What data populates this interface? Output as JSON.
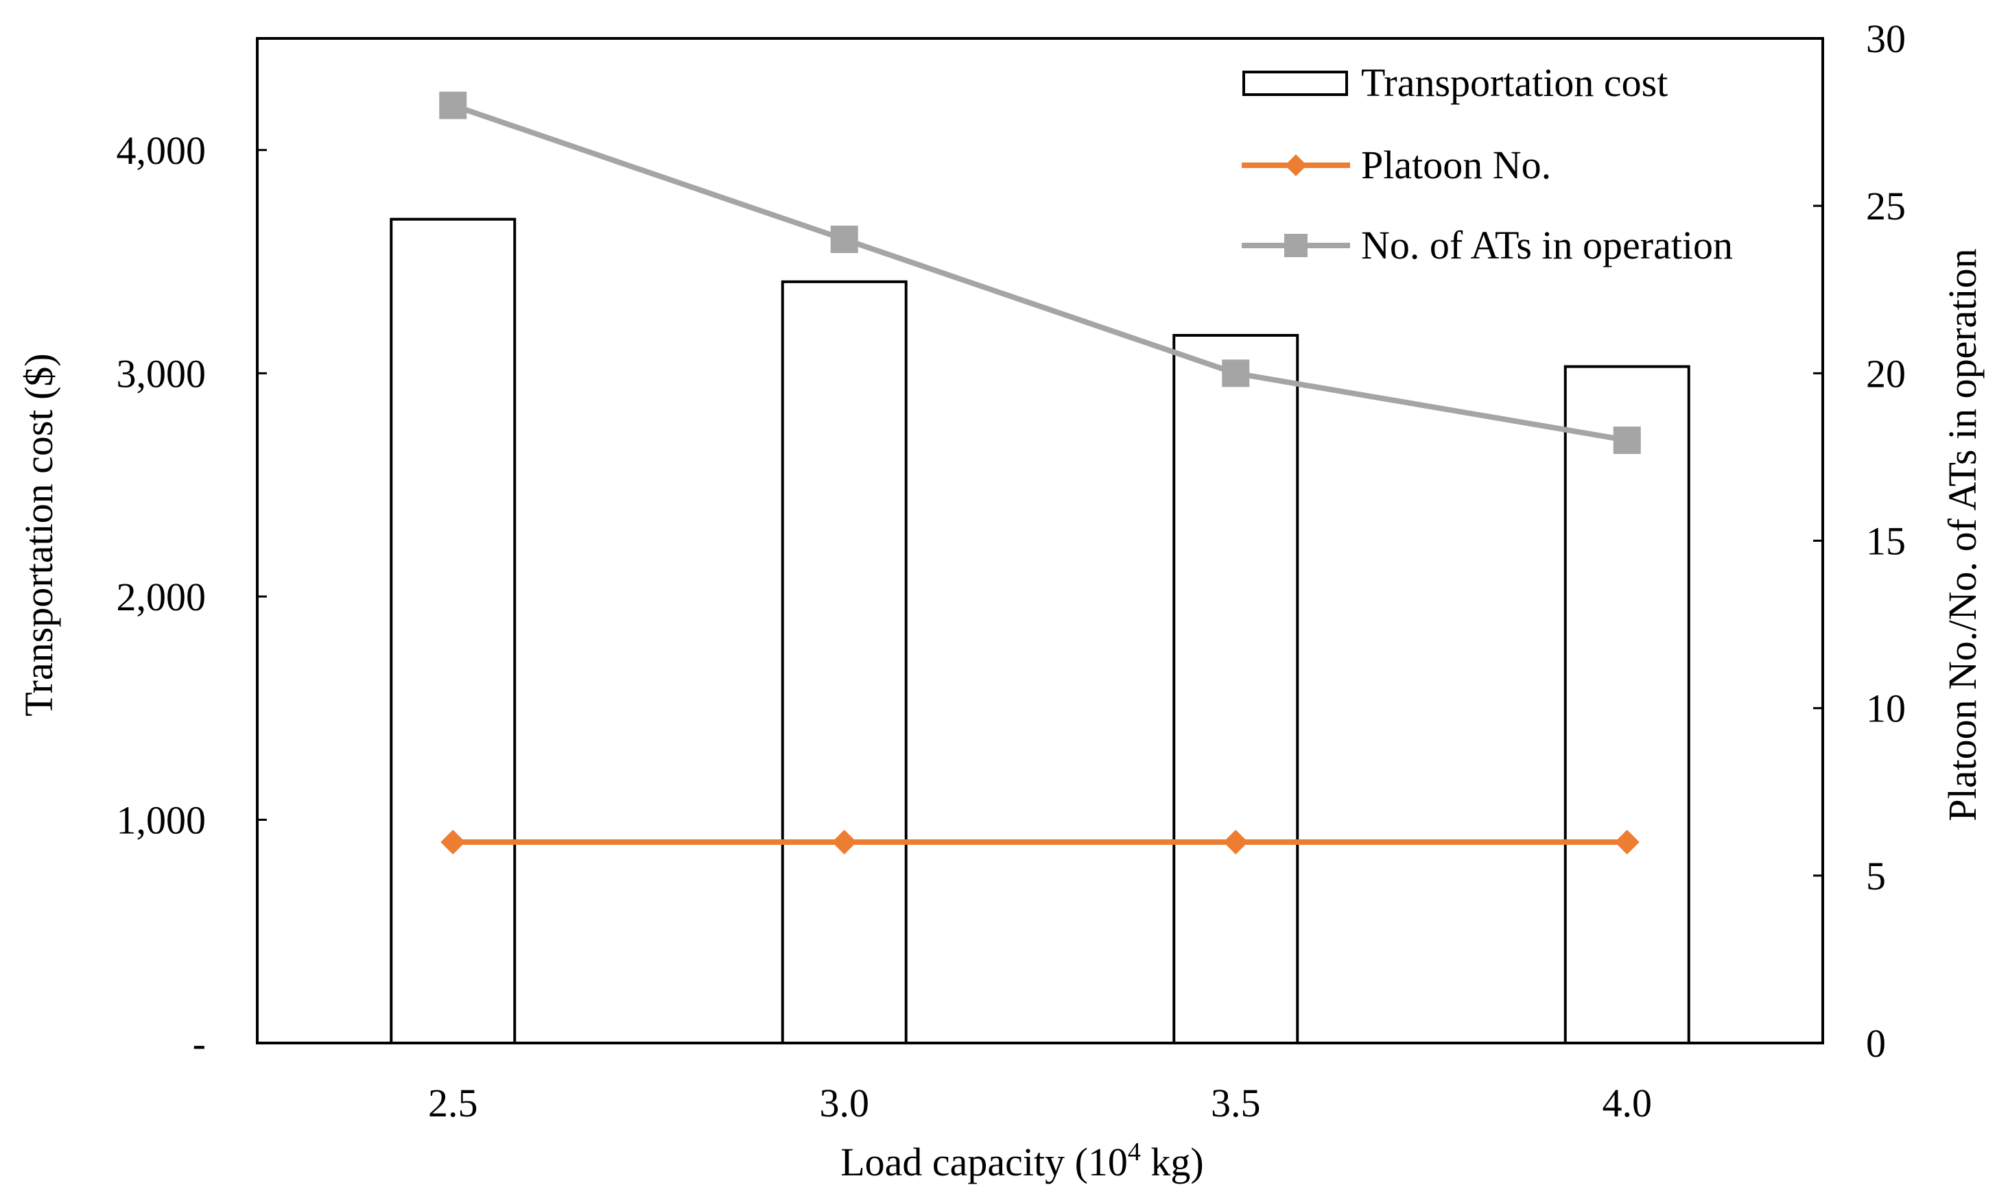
{
  "colors": {
    "bar_fill": "#ffffff",
    "bar_stroke": "#000000",
    "platoon_line": "#ED7D31",
    "ats_line": "#A5A5A5",
    "axis": "#000000"
  },
  "chart_data": {
    "type": "bar+line",
    "categories": [
      "2.5",
      "3.0",
      "3.5",
      "4.0"
    ],
    "xlabel_prefix": "Load capacity (10",
    "xlabel_sup": "4",
    "xlabel_suffix": " kg)",
    "ylabel_left": "Transportation cost ($)",
    "ylabel_right": "Platoon No./No. of ATs in operation",
    "ylim_left": [
      0,
      4500
    ],
    "ylim_right": [
      0,
      30
    ],
    "left_ticks": [
      {
        "value": 0,
        "label": "-"
      },
      {
        "value": 1000,
        "label": "1,000"
      },
      {
        "value": 2000,
        "label": "2,000"
      },
      {
        "value": 3000,
        "label": "3,000"
      },
      {
        "value": 4000,
        "label": "4,000"
      }
    ],
    "right_ticks": [
      {
        "value": 0,
        "label": "0"
      },
      {
        "value": 5,
        "label": "5"
      },
      {
        "value": 10,
        "label": "10"
      },
      {
        "value": 15,
        "label": "15"
      },
      {
        "value": 20,
        "label": "20"
      },
      {
        "value": 25,
        "label": "25"
      },
      {
        "value": 30,
        "label": "30"
      }
    ],
    "series": [
      {
        "name": "Transportation cost",
        "type": "bar",
        "axis": "left",
        "values": [
          3690,
          3410,
          3170,
          3030
        ]
      },
      {
        "name": "Platoon No.",
        "type": "line",
        "marker": "diamond",
        "axis": "right",
        "values": [
          6,
          6,
          6,
          6
        ]
      },
      {
        "name": "No. of ATs in operation",
        "type": "line",
        "marker": "square",
        "axis": "right",
        "values": [
          28,
          24,
          20,
          18
        ]
      }
    ],
    "legend_position": "top-right"
  }
}
